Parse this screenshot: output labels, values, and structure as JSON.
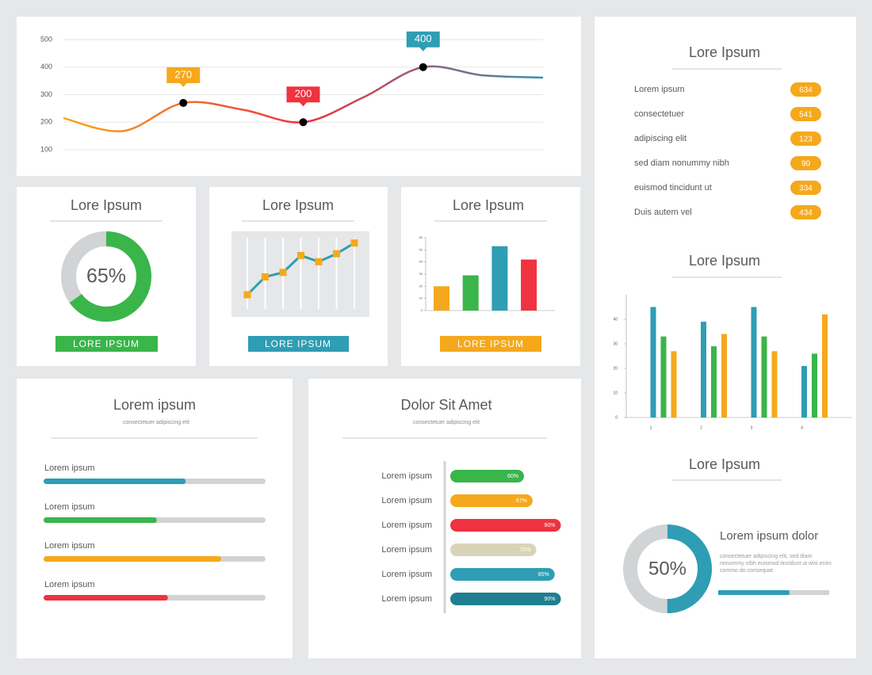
{
  "chart_data": [
    {
      "type": "line",
      "categories": [
        null,
        null,
        null,
        null,
        null,
        null,
        null,
        null,
        null
      ],
      "ylim": [
        100,
        500
      ],
      "yticks": [
        100,
        200,
        300,
        400,
        500
      ],
      "grid": true,
      "series": [
        {
          "colors": [
            "#f5a81c",
            "#ef3340",
            "#3a8fb0"
          ],
          "values": [
            215,
            168,
            270,
            245,
            200,
            290,
            400,
            370,
            362
          ]
        },
        {
          "colors": [
            null,
            null,
            "#f5a81c",
            null,
            "#ef3340",
            null,
            "#2f9db4",
            null,
            null
          ],
          "values": [
            null,
            null,
            270,
            null,
            200,
            null,
            400,
            null,
            null
          ]
        }
      ]
    },
    {
      "type": "donut",
      "title": "Lore Ipsum",
      "value": 65,
      "value_label": "65%",
      "color": "#3ab54a",
      "track_color": "#d1d3d4",
      "button": "LORE IPSUM"
    },
    {
      "type": "line",
      "title": "Lore Ipsum",
      "categories": [
        null,
        null,
        null,
        null,
        null,
        null,
        null
      ],
      "values": [
        1.6,
        3.6,
        4.1,
        6,
        5.3,
        6.2,
        7.4
      ],
      "ylim": [
        0,
        8
      ],
      "color": "#2f9db4",
      "marker_color": "#f5a81c",
      "button": "LORE IPSUM"
    },
    {
      "type": "bar",
      "title": "Lore Ipsum",
      "categories": [
        null,
        null,
        null,
        null
      ],
      "values": [
        20,
        29,
        53,
        42
      ],
      "colors": [
        "#f5a81c",
        "#3ab54a",
        "#2f9db4",
        "#ef3340"
      ],
      "ylim": [
        0,
        60
      ],
      "yticks": [
        0,
        10,
        20,
        30,
        40,
        50,
        60
      ],
      "button": "LORE IPSUM",
      "button_color": "#f5a81c"
    },
    {
      "type": "grouped-bar",
      "title": "Lore Ipsum",
      "categories": [
        "1",
        "2",
        "3",
        "4"
      ],
      "ylim": [
        0,
        50
      ],
      "yticks": [
        0,
        10,
        20,
        30,
        40
      ],
      "series": [
        {
          "color": "#2f9db4",
          "values": [
            45,
            39,
            45,
            21
          ]
        },
        {
          "color": "#3ab54a",
          "values": [
            33,
            29,
            33,
            26
          ]
        },
        {
          "color": "#f5a81c",
          "values": [
            27,
            34,
            27,
            42
          ]
        }
      ]
    },
    {
      "type": "progress",
      "title": "Lorem ipsum",
      "subtitle": "consectetuer adipiscing elit",
      "categories": [
        "Lorem ipsum",
        "Lorem ipsum",
        "Lorem ipsum",
        "Lorem ipsum"
      ],
      "values": [
        64,
        51,
        80,
        56
      ],
      "colors": [
        "#2f9db4",
        "#3ab54a",
        "#f5a81c",
        "#ef3340"
      ],
      "xlim": [
        0,
        100
      ]
    },
    {
      "type": "hbar",
      "title": "Dolor Sit Amet",
      "subtitle": "consectetuer adipiscing elit",
      "categories": [
        "Lorem ipsum",
        "Lorem ipsum",
        "Lorem ipsum",
        "Lorem ipsum",
        "Lorem ipsum",
        "Lorem ipsum"
      ],
      "values": [
        60,
        67,
        90,
        70,
        85,
        90
      ],
      "value_labels": [
        "60%",
        "67%",
        "90%",
        "70%",
        "85%",
        "90%"
      ],
      "colors": [
        "#3ab54a",
        "#f5a81c",
        "#ef3340",
        "#d9d4b8",
        "#2f9db4",
        "#1d7f8f"
      ],
      "xlim": [
        0,
        100
      ]
    },
    {
      "type": "donut",
      "title": "Lore Ipsum",
      "value": 50,
      "value_label": "50%",
      "color": "#2f9db4",
      "track_color": "#d1d3d4",
      "heading": "Lorem ipsum dolor",
      "text": "consectetuer adipiscing elit, sed diam nonummy nibh euismod tincidunt ut wisi enim commo do consequat",
      "progress": 64
    }
  ],
  "list": {
    "title": "Lore Ipsum",
    "badge_color": "#f5a81c",
    "rows": [
      [
        "Lorem ipsum",
        634
      ],
      [
        "consectetuer",
        541
      ],
      [
        "adipiscing elit",
        123
      ],
      [
        "sed diam nonummy nibh",
        90
      ],
      [
        "euismod tincidunt ut",
        334
      ],
      [
        "Duis autem vel",
        434
      ]
    ]
  }
}
